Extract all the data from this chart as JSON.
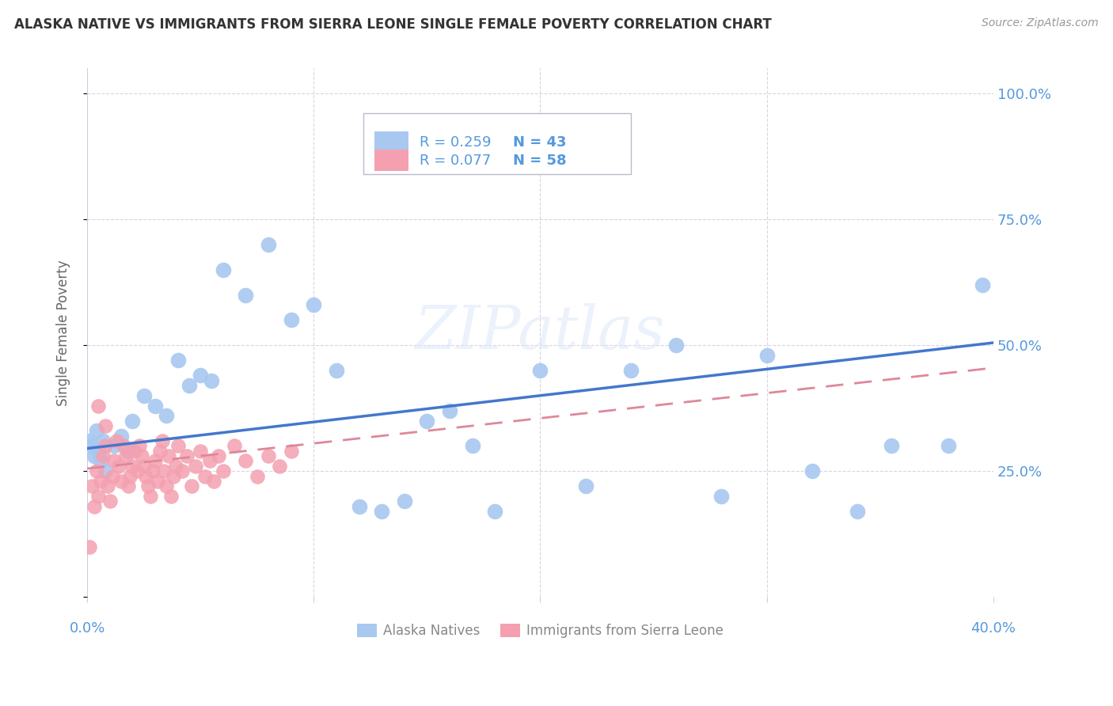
{
  "title": "ALASKA NATIVE VS IMMIGRANTS FROM SIERRA LEONE SINGLE FEMALE POVERTY CORRELATION CHART",
  "source": "Source: ZipAtlas.com",
  "ylabel": "Single Female Poverty",
  "yticks": [
    0.0,
    0.25,
    0.5,
    0.75,
    1.0
  ],
  "ytick_labels": [
    "",
    "25.0%",
    "50.0%",
    "75.0%",
    "100.0%"
  ],
  "watermark": "ZIPatlas",
  "alaska_R": 0.259,
  "alaska_N": 43,
  "sierra_leone_R": 0.077,
  "sierra_leone_N": 58,
  "alaska_color": "#a8c8f0",
  "sierra_leone_color": "#f4a0b0",
  "alaska_line_color": "#4477cc",
  "sierra_leone_line_color": "#dd8899",
  "text_blue": "#5599dd",
  "text_gray": "#888888",
  "alaska_x": [
    0.001,
    0.002,
    0.003,
    0.004,
    0.005,
    0.006,
    0.007,
    0.008,
    0.012,
    0.015,
    0.018,
    0.02,
    0.025,
    0.03,
    0.035,
    0.04,
    0.045,
    0.05,
    0.055,
    0.06,
    0.07,
    0.08,
    0.09,
    0.1,
    0.11,
    0.12,
    0.13,
    0.14,
    0.15,
    0.16,
    0.17,
    0.18,
    0.2,
    0.22,
    0.24,
    0.26,
    0.28,
    0.3,
    0.32,
    0.34,
    0.355,
    0.38,
    0.395
  ],
  "alaska_y": [
    0.31,
    0.3,
    0.28,
    0.33,
    0.29,
    0.27,
    0.31,
    0.25,
    0.3,
    0.32,
    0.29,
    0.35,
    0.4,
    0.38,
    0.36,
    0.47,
    0.42,
    0.44,
    0.43,
    0.65,
    0.6,
    0.7,
    0.55,
    0.58,
    0.45,
    0.18,
    0.17,
    0.19,
    0.35,
    0.37,
    0.3,
    0.17,
    0.45,
    0.22,
    0.45,
    0.5,
    0.2,
    0.48,
    0.25,
    0.17,
    0.3,
    0.3,
    0.62
  ],
  "sierra_leone_x": [
    0.001,
    0.002,
    0.003,
    0.004,
    0.005,
    0.006,
    0.007,
    0.008,
    0.009,
    0.01,
    0.011,
    0.012,
    0.013,
    0.014,
    0.015,
    0.016,
    0.017,
    0.018,
    0.019,
    0.02,
    0.021,
    0.022,
    0.023,
    0.024,
    0.025,
    0.026,
    0.027,
    0.028,
    0.029,
    0.03,
    0.031,
    0.032,
    0.033,
    0.034,
    0.035,
    0.036,
    0.037,
    0.038,
    0.039,
    0.04,
    0.042,
    0.044,
    0.046,
    0.048,
    0.05,
    0.052,
    0.054,
    0.056,
    0.058,
    0.06,
    0.065,
    0.07,
    0.075,
    0.08,
    0.085,
    0.09,
    0.005,
    0.008
  ],
  "sierra_leone_y": [
    0.1,
    0.22,
    0.18,
    0.25,
    0.2,
    0.23,
    0.28,
    0.3,
    0.22,
    0.19,
    0.24,
    0.27,
    0.31,
    0.26,
    0.23,
    0.3,
    0.28,
    0.22,
    0.24,
    0.26,
    0.29,
    0.25,
    0.3,
    0.28,
    0.26,
    0.24,
    0.22,
    0.2,
    0.25,
    0.27,
    0.23,
    0.29,
    0.31,
    0.25,
    0.22,
    0.28,
    0.2,
    0.24,
    0.26,
    0.3,
    0.25,
    0.28,
    0.22,
    0.26,
    0.29,
    0.24,
    0.27,
    0.23,
    0.28,
    0.25,
    0.3,
    0.27,
    0.24,
    0.28,
    0.26,
    0.29,
    0.38,
    0.34
  ],
  "xlim": [
    0.0,
    0.4
  ],
  "ylim": [
    0.0,
    1.05
  ],
  "alaska_trend_x": [
    0.0,
    0.4
  ],
  "alaska_trend_y": [
    0.295,
    0.505
  ],
  "sierra_leone_trend_x": [
    0.0,
    0.4
  ],
  "sierra_leone_trend_y": [
    0.255,
    0.455
  ]
}
